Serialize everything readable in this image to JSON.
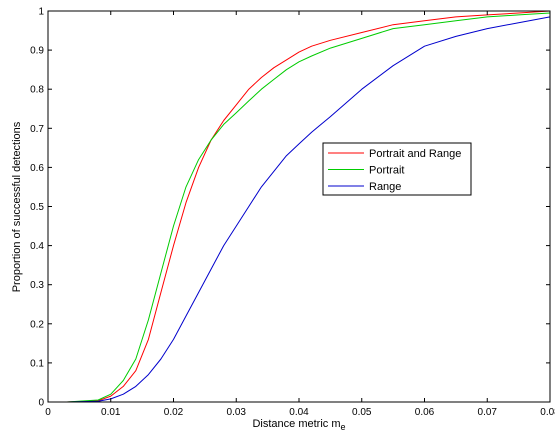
{
  "chart_data": {
    "type": "line",
    "title": "",
    "xlabel": "Distance metric m",
    "xlabel_subscript": "e",
    "ylabel": "Proportion of successful detections",
    "xlim": [
      0,
      0.08
    ],
    "ylim": [
      0,
      1
    ],
    "xticks": [
      0,
      0.01,
      0.02,
      0.03,
      0.04,
      0.05,
      0.06,
      0.07,
      0.08
    ],
    "yticks": [
      0,
      0.1,
      0.2,
      0.3,
      0.4,
      0.5,
      0.6,
      0.7,
      0.8,
      0.9,
      1
    ],
    "xtick_labels": [
      "0",
      "0.01",
      "0.02",
      "0.03",
      "0.04",
      "0.05",
      "0.06",
      "0.07",
      "0.08"
    ],
    "ytick_labels": [
      "0",
      "0.1",
      "0.2",
      "0.3",
      "0.4",
      "0.5",
      "0.6",
      "0.7",
      "0.8",
      "0.9",
      "1"
    ],
    "grid": false,
    "legend_position": "center-right",
    "series": [
      {
        "name": "Portrait and Range",
        "color": "#ff0000",
        "x": [
          0.003,
          0.008,
          0.01,
          0.012,
          0.014,
          0.016,
          0.018,
          0.02,
          0.022,
          0.024,
          0.026,
          0.028,
          0.03,
          0.032,
          0.034,
          0.036,
          0.038,
          0.04,
          0.042,
          0.045,
          0.05,
          0.055,
          0.06,
          0.065,
          0.07,
          0.075,
          0.08
        ],
        "y": [
          0,
          0.003,
          0.015,
          0.04,
          0.08,
          0.16,
          0.28,
          0.4,
          0.51,
          0.6,
          0.67,
          0.72,
          0.76,
          0.8,
          0.83,
          0.855,
          0.875,
          0.895,
          0.91,
          0.925,
          0.945,
          0.965,
          0.975,
          0.985,
          0.99,
          0.995,
          1.0
        ]
      },
      {
        "name": "Portrait",
        "color": "#00cc00",
        "x": [
          0.003,
          0.008,
          0.01,
          0.012,
          0.014,
          0.016,
          0.018,
          0.02,
          0.022,
          0.024,
          0.026,
          0.028,
          0.03,
          0.032,
          0.034,
          0.036,
          0.038,
          0.04,
          0.042,
          0.045,
          0.05,
          0.055,
          0.06,
          0.065,
          0.07,
          0.075,
          0.08
        ],
        "y": [
          0,
          0.005,
          0.02,
          0.055,
          0.11,
          0.21,
          0.33,
          0.45,
          0.55,
          0.62,
          0.67,
          0.71,
          0.74,
          0.77,
          0.8,
          0.825,
          0.85,
          0.87,
          0.885,
          0.905,
          0.93,
          0.955,
          0.965,
          0.975,
          0.985,
          0.99,
          0.995
        ]
      },
      {
        "name": "Range",
        "color": "#0000cc",
        "x": [
          0.003,
          0.008,
          0.01,
          0.012,
          0.014,
          0.016,
          0.018,
          0.02,
          0.022,
          0.024,
          0.026,
          0.028,
          0.03,
          0.032,
          0.034,
          0.036,
          0.038,
          0.04,
          0.042,
          0.045,
          0.05,
          0.055,
          0.06,
          0.065,
          0.07,
          0.075,
          0.08
        ],
        "y": [
          0,
          0.002,
          0.008,
          0.02,
          0.04,
          0.07,
          0.11,
          0.16,
          0.22,
          0.28,
          0.34,
          0.4,
          0.45,
          0.5,
          0.55,
          0.59,
          0.63,
          0.66,
          0.69,
          0.73,
          0.8,
          0.86,
          0.91,
          0.935,
          0.955,
          0.97,
          0.985
        ]
      }
    ]
  }
}
